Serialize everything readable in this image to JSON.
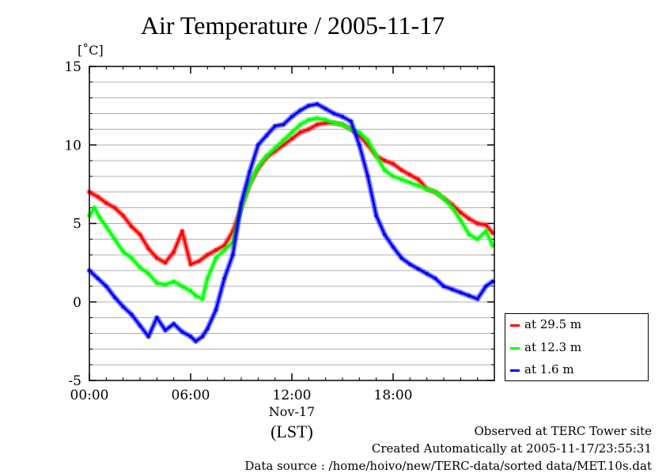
{
  "title": "Air Temperature / 2005-11-17",
  "unit_label": "[˚C]",
  "chart_data": {
    "type": "line",
    "title": "Air Temperature / 2005-11-17",
    "xlabel": "(LST)",
    "x_date_label": "Nov-17",
    "ylabel": "[˚C]",
    "xlim": [
      0,
      24
    ],
    "ylim": [
      -5,
      15
    ],
    "x_ticks": [
      0,
      6,
      12,
      18
    ],
    "x_tick_labels": [
      "00:00",
      "06:00",
      "12:00",
      "18:00"
    ],
    "y_ticks": [
      -5,
      0,
      5,
      10,
      15
    ],
    "y_tick_labels": [
      "-5",
      "0",
      "5",
      "10",
      "15"
    ],
    "grid": "horizontal",
    "legend": "bottom-right",
    "series": [
      {
        "name": "at 29.5 m",
        "color": "#ff0000",
        "x": [
          0,
          0.5,
          1,
          1.5,
          2,
          2.5,
          3,
          3.5,
          4,
          4.5,
          5,
          5.5,
          6,
          6.5,
          7,
          7.5,
          8,
          8.5,
          9,
          9.5,
          10,
          10.5,
          11,
          11.5,
          12,
          12.5,
          13,
          13.5,
          14,
          14.5,
          15,
          15.5,
          16,
          16.5,
          17,
          17.5,
          18,
          18.5,
          19,
          19.5,
          20,
          20.5,
          21,
          21.5,
          22,
          22.5,
          23,
          23.5,
          23.9
        ],
        "y": [
          7.0,
          6.7,
          6.3,
          6.0,
          5.5,
          4.8,
          4.3,
          3.4,
          2.8,
          2.5,
          3.2,
          4.5,
          2.4,
          2.6,
          3.0,
          3.3,
          3.6,
          4.5,
          6.0,
          7.5,
          8.5,
          9.2,
          9.6,
          10.0,
          10.4,
          10.8,
          11.0,
          11.3,
          11.4,
          11.4,
          11.3,
          11.0,
          10.6,
          10.0,
          9.3,
          9.0,
          8.8,
          8.4,
          8.1,
          7.8,
          7.2,
          7.0,
          6.6,
          6.2,
          5.7,
          5.3,
          5.0,
          4.9,
          4.4
        ]
      },
      {
        "name": "at 12.3 m",
        "color": "#00ff00",
        "x": [
          0,
          0.3,
          0.6,
          1,
          1.5,
          2,
          2.5,
          3,
          3.5,
          4,
          4.5,
          5,
          5.5,
          6,
          6.3,
          6.7,
          7,
          7.5,
          8,
          8.5,
          9,
          9.5,
          10,
          10.5,
          11,
          11.5,
          12,
          12.5,
          13,
          13.5,
          14,
          14.5,
          15,
          15.5,
          16,
          16.5,
          17,
          17.5,
          18,
          18.5,
          19,
          19.5,
          20,
          20.5,
          21,
          21.5,
          22,
          22.5,
          23,
          23.5,
          23.9
        ],
        "y": [
          5.5,
          6.0,
          5.4,
          4.8,
          4.0,
          3.2,
          2.8,
          2.2,
          1.8,
          1.2,
          1.1,
          1.3,
          1.0,
          0.7,
          0.4,
          0.2,
          1.5,
          2.8,
          3.3,
          3.8,
          6.0,
          7.5,
          8.6,
          9.3,
          9.8,
          10.3,
          10.8,
          11.3,
          11.6,
          11.7,
          11.6,
          11.4,
          11.3,
          11.0,
          10.8,
          10.3,
          9.3,
          8.4,
          8.0,
          7.8,
          7.6,
          7.4,
          7.2,
          7.0,
          6.6,
          6.0,
          5.2,
          4.3,
          4.0,
          4.5,
          3.6
        ]
      },
      {
        "name": "at 1.6 m",
        "color": "#0000ff",
        "x": [
          0,
          0.5,
          1,
          1.5,
          2,
          2.5,
          3,
          3.5,
          4,
          4.5,
          5,
          5.5,
          6,
          6.3,
          6.7,
          7,
          7.5,
          8,
          8.5,
          9,
          9.5,
          10,
          10.5,
          11,
          11.5,
          12,
          12.5,
          13,
          13.5,
          14,
          14.5,
          15,
          15.5,
          16,
          16.5,
          17,
          17.5,
          18,
          18.5,
          19,
          19.5,
          20,
          20.5,
          21,
          21.5,
          22,
          22.5,
          23,
          23.5,
          23.9
        ],
        "y": [
          2.0,
          1.5,
          1.0,
          0.3,
          -0.3,
          -0.8,
          -1.5,
          -2.2,
          -1.0,
          -1.8,
          -1.4,
          -1.9,
          -2.2,
          -2.5,
          -2.2,
          -1.7,
          -0.5,
          1.5,
          3.0,
          6.3,
          8.3,
          10.0,
          10.6,
          11.2,
          11.3,
          11.8,
          12.2,
          12.5,
          12.6,
          12.3,
          12.0,
          11.8,
          11.5,
          10.0,
          8.0,
          5.5,
          4.3,
          3.5,
          2.8,
          2.4,
          2.1,
          1.8,
          1.5,
          1.0,
          0.8,
          0.6,
          0.4,
          0.2,
          1.0,
          1.3
        ]
      }
    ]
  },
  "footer": {
    "site": "Observed at TERC Tower site",
    "created": "Created Automatically at 2005-11-17/23:55:31",
    "source": "Data source : /home/hoivo/new/TERC-data/sorted  data/MET.10s.dat"
  }
}
